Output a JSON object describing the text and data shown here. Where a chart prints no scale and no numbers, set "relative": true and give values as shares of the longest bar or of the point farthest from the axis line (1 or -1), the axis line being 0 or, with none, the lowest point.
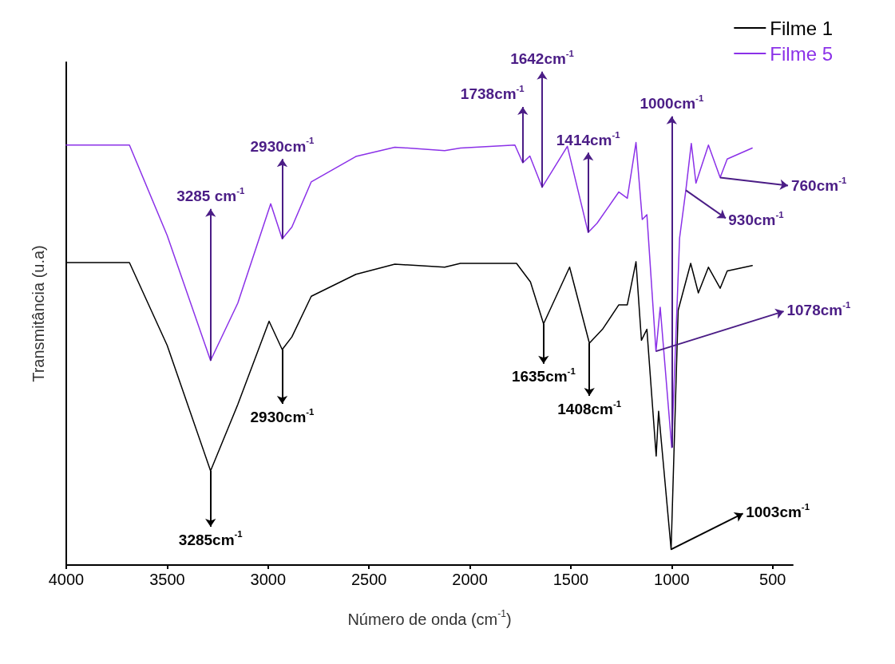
{
  "chart_data": {
    "type": "line",
    "xlabel": "Número de onda (cm$^{-1}$)",
    "ylabel": "Transmitância (u.a)",
    "relative": true,
    "xlim": [
      4000,
      400
    ],
    "xticks": [
      4000,
      3500,
      3000,
      2500,
      2000,
      1500,
      1000,
      500
    ],
    "tick_labels": "x",
    "grid": false,
    "legend": "top right",
    "marker": "none",
    "line_style": "solid",
    "series": [
      {
        "name": "Filme 1",
        "color": "#000000",
        "x": [
          4000,
          3687,
          3500,
          3285,
          3150,
          2995,
          2930,
          2882,
          2786,
          2565,
          2372,
          2125,
          2047,
          1769,
          1700,
          1635,
          1506,
          1408,
          1343,
          1262,
          1220,
          1177,
          1150,
          1123,
          1077,
          1065,
          1003,
          968,
          906,
          868,
          818,
          760,
          725,
          601
        ],
        "values": [
          0.716,
          0.716,
          0.52,
          0.223,
          0.38,
          0.577,
          0.51,
          0.54,
          0.636,
          0.688,
          0.712,
          0.705,
          0.714,
          0.714,
          0.67,
          0.571,
          0.705,
          0.525,
          0.558,
          0.616,
          0.616,
          0.718,
          0.532,
          0.558,
          0.258,
          0.364,
          0.037,
          0.603,
          0.714,
          0.644,
          0.705,
          0.655,
          0.696,
          0.709
        ]
      },
      {
        "name": "Filme 5",
        "color": "#8b31e8",
        "x": [
          4000,
          3687,
          3500,
          3285,
          3150,
          2987,
          2930,
          2882,
          2786,
          2565,
          2372,
          2125,
          2047,
          1777,
          1738,
          1703,
          1642,
          1517,
          1414,
          1370,
          1262,
          1220,
          1177,
          1146,
          1123,
          1078,
          1057,
          1000,
          961,
          930,
          903,
          880,
          818,
          760,
          725,
          601
        ],
        "values": [
          0.994,
          0.994,
          0.78,
          0.484,
          0.62,
          0.855,
          0.772,
          0.8,
          0.907,
          0.967,
          0.989,
          0.981,
          0.987,
          0.994,
          0.952,
          0.968,
          0.894,
          0.991,
          0.787,
          0.809,
          0.883,
          0.868,
          1,
          0.818,
          0.829,
          0.506,
          0.61,
          0.278,
          0.774,
          0.887,
          0.998,
          0.904,
          0.994,
          0.917,
          0.961,
          0.987
        ]
      }
    ],
    "annotations": [
      {
        "text": "3285 cm$^{-1}$",
        "x": 3285,
        "y": 0.484
      },
      {
        "text": "2930cm$^{-1}$",
        "x": 2930,
        "y": 0.772
      },
      {
        "text": "1738cm$^{-1}$",
        "x": 1738,
        "y": 0.952
      },
      {
        "text": "1642cm$^{-1}$",
        "x": 1642,
        "y": 0.894
      },
      {
        "text": "1414cm$^{-1}$",
        "x": 1414,
        "y": 0.787
      },
      {
        "text": "1000cm$^{-1}$",
        "x": 1000,
        "y": 0.278
      },
      {
        "text": "930cm$^{-1}$",
        "x": 930,
        "y": 0.887
      },
      {
        "text": "760cm$^{-1}$",
        "x": 760,
        "y": 0.917
      },
      {
        "text": "1078cm$^{-1}$",
        "x": 1078,
        "y": 0.506
      },
      {
        "text": "3285cm$^{-1}$",
        "x": 3285,
        "y": 0.223
      },
      {
        "text": "2930cm$^{-1}$",
        "x": 2930,
        "y": 0.51
      },
      {
        "text": "1635cm$^{-1}$",
        "x": 1635,
        "y": 0.571
      },
      {
        "text": "1408cm$^{-1}$",
        "x": 1408,
        "y": 0.525
      },
      {
        "text": "1003cm$^{-1}$",
        "x": 1003,
        "y": 0.037
      }
    ]
  }
}
